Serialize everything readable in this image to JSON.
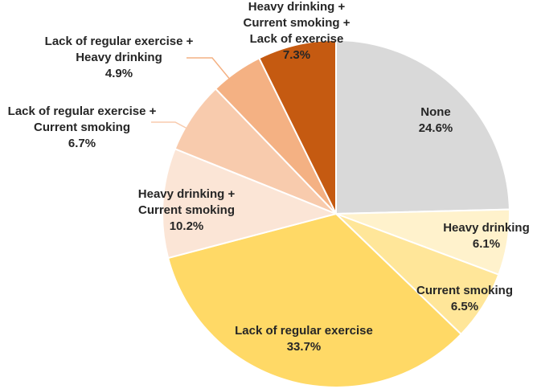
{
  "chart_data": {
    "type": "pie",
    "title": "",
    "slices": [
      {
        "label": "None",
        "value": 24.6,
        "pct_label": "24.6%",
        "color": "#d9d9d9"
      },
      {
        "label": "Heavy drinking",
        "value": 6.1,
        "pct_label": "6.1%",
        "color": "#fff2cc"
      },
      {
        "label": "Current smoking",
        "value": 6.5,
        "pct_label": "6.5%",
        "color": "#ffe699"
      },
      {
        "label": "Lack of regular exercise",
        "value": 33.7,
        "pct_label": "33.7%",
        "color": "#ffd966"
      },
      {
        "label": "Heavy drinking + Current smoking",
        "value": 10.2,
        "pct_label": "10.2%",
        "color": "#fbe5d6"
      },
      {
        "label": "Lack of regular exercise + Current smoking",
        "value": 6.7,
        "pct_label": "6.7%",
        "color": "#f8cbad"
      },
      {
        "label": "Lack of regular exercise + Heavy drinking",
        "value": 4.9,
        "pct_label": "4.9%",
        "color": "#f4b183"
      },
      {
        "label": "Heavy drinking + Current smoking + Lack of exercise",
        "value": 7.3,
        "pct_label": "7.3%",
        "color": "#c55a11"
      }
    ]
  }
}
